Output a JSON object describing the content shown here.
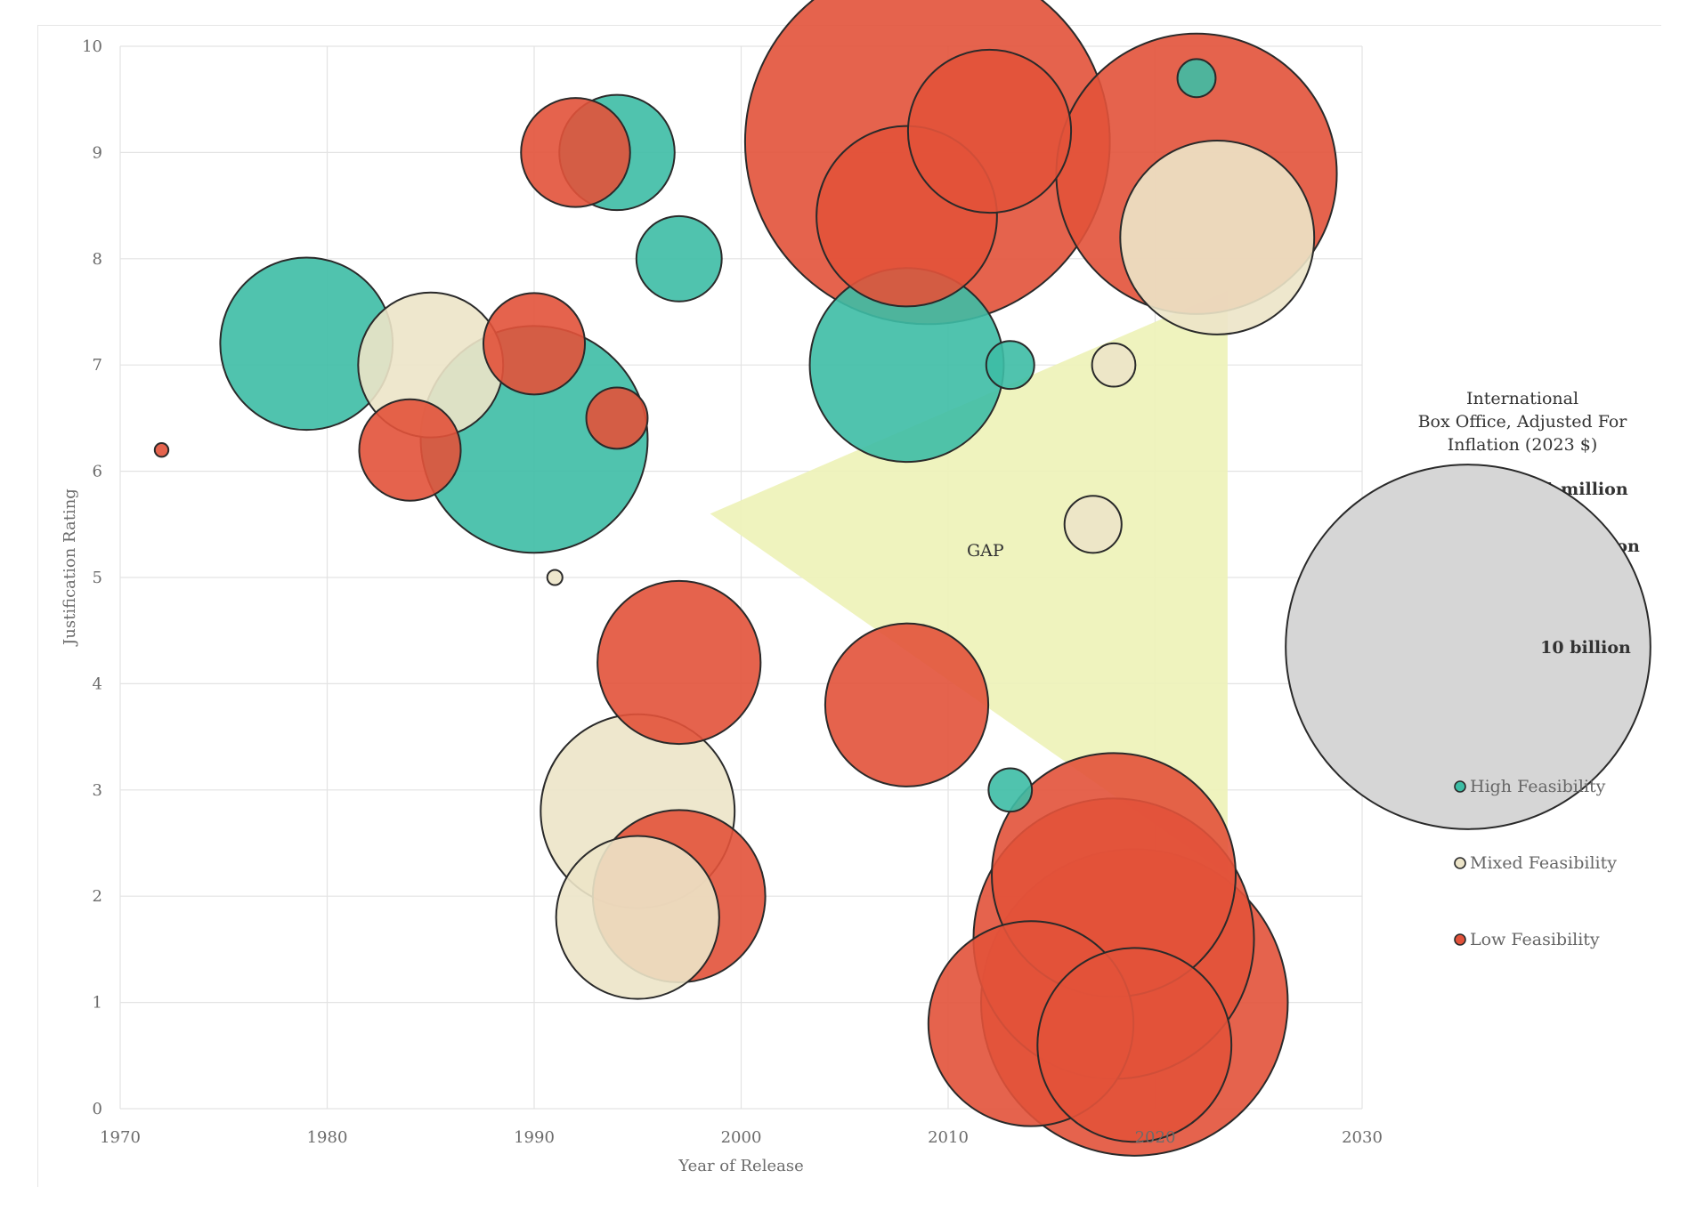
{
  "colors": {
    "high": "#3dbda5",
    "mixed": "#ece4c8",
    "low": "#e2523a",
    "gap": "#eef2b8",
    "size_legend": "#d6d6d6",
    "grid": "#e3e3e3"
  },
  "chart_data": {
    "type": "scatter",
    "subtype": "bubble",
    "title": "",
    "xlabel": "Year of Release",
    "ylabel": "Justification Rating",
    "xlim": [
      1970,
      2030
    ],
    "ylim": [
      0,
      10
    ],
    "x_ticks": [
      "1970",
      "1980",
      "1990",
      "2000",
      "2010",
      "2020",
      "2030"
    ],
    "y_ticks": [
      "0",
      "1",
      "2",
      "3",
      "4",
      "5",
      "6",
      "7",
      "8",
      "9",
      "10"
    ],
    "grid": true,
    "annotation": {
      "label": "GAP",
      "shape": "triangle",
      "vertices": [
        [
          1998.5,
          5.6
        ],
        [
          2023.5,
          7.7
        ],
        [
          2023.5,
          2.2
        ]
      ],
      "label_at": [
        2011.8,
        5.25
      ]
    },
    "size_legend": {
      "title_lines": [
        "International",
        "Box Office, Adjusted For",
        "Inflation (2023 $)"
      ],
      "entries": [
        {
          "label": "1 million",
          "value": 1000000
        },
        {
          "label": "100 million",
          "value": 100000000
        },
        {
          "label": "10 billion",
          "value": 10000000000
        }
      ]
    },
    "categories": [
      {
        "key": "high",
        "label": "High Feasibility"
      },
      {
        "key": "mixed",
        "label": "Mixed Feasibility"
      },
      {
        "key": "low",
        "label": "Low Feasibility"
      }
    ],
    "points": [
      {
        "x": 1972,
        "y": 6.2,
        "box_office": 20000,
        "category": "low"
      },
      {
        "x": 1979,
        "y": 7.2,
        "box_office": 500000000,
        "category": "high"
      },
      {
        "x": 1984,
        "y": 6.2,
        "box_office": 60000000,
        "category": "low"
      },
      {
        "x": 1985,
        "y": 7.0,
        "box_office": 250000000,
        "category": "mixed"
      },
      {
        "x": 1990,
        "y": 7.2,
        "box_office": 60000000,
        "category": "low"
      },
      {
        "x": 1990,
        "y": 6.3,
        "box_office": 1500000000,
        "category": "high"
      },
      {
        "x": 1991,
        "y": 5.0,
        "box_office": 30000,
        "category": "mixed"
      },
      {
        "x": 1992,
        "y": 9.0,
        "box_office": 80000000,
        "category": "low"
      },
      {
        "x": 1994,
        "y": 9.0,
        "box_office": 100000000,
        "category": "high"
      },
      {
        "x": 1994,
        "y": 6.5,
        "box_office": 8000000,
        "category": "low"
      },
      {
        "x": 1997,
        "y": 8.0,
        "box_office": 30000000,
        "category": "high"
      },
      {
        "x": 1997,
        "y": 4.2,
        "box_office": 400000000,
        "category": "low"
      },
      {
        "x": 1995,
        "y": 2.8,
        "box_office": 800000000,
        "category": "mixed"
      },
      {
        "x": 1995,
        "y": 1.8,
        "box_office": 400000000,
        "category": "mixed"
      },
      {
        "x": 1997,
        "y": 2.0,
        "box_office": 500000000,
        "category": "low"
      },
      {
        "x": 2008,
        "y": 8.4,
        "box_office": 600000000,
        "category": "low"
      },
      {
        "x": 2009,
        "y": 9.1,
        "box_office": 10000000000,
        "category": "low"
      },
      {
        "x": 2012,
        "y": 9.2,
        "box_office": 400000000,
        "category": "low"
      },
      {
        "x": 2008,
        "y": 7.0,
        "box_office": 800000000,
        "category": "high"
      },
      {
        "x": 2008,
        "y": 3.8,
        "box_office": 400000000,
        "category": "low"
      },
      {
        "x": 2013,
        "y": 7.0,
        "box_office": 3000000,
        "category": "high"
      },
      {
        "x": 2013,
        "y": 3.0,
        "box_office": 2000000,
        "category": "high"
      },
      {
        "x": 2018,
        "y": 7.0,
        "box_office": 2000000,
        "category": "mixed"
      },
      {
        "x": 2017,
        "y": 5.5,
        "box_office": 6000000,
        "category": "mixed"
      },
      {
        "x": 2022,
        "y": 9.7,
        "box_office": 1200000,
        "category": "high"
      },
      {
        "x": 2022,
        "y": 8.8,
        "box_office": 3500000000,
        "category": "low"
      },
      {
        "x": 2023,
        "y": 8.2,
        "box_office": 800000000,
        "category": "mixed"
      },
      {
        "x": 2018,
        "y": 2.2,
        "box_office": 2000000000,
        "category": "low"
      },
      {
        "x": 2018,
        "y": 1.6,
        "box_office": 3500000000,
        "category": "low"
      },
      {
        "x": 2019,
        "y": 1.0,
        "box_office": 5000000000,
        "category": "low"
      },
      {
        "x": 2019,
        "y": 0.6,
        "box_office": 800000000,
        "category": "low"
      },
      {
        "x": 2014,
        "y": 0.8,
        "box_office": 1000000000,
        "category": "low"
      }
    ]
  }
}
